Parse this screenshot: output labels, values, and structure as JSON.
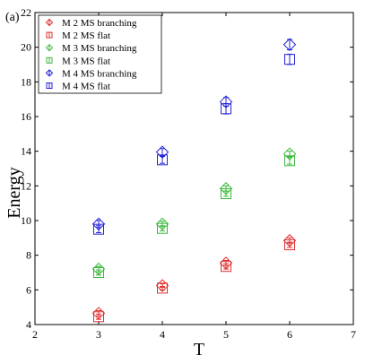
{
  "panel_label": "(a)",
  "chart_data": {
    "type": "scatter",
    "xlabel": "T",
    "ylabel": "Energy",
    "xlim": [
      2,
      7
    ],
    "ylim": [
      4,
      22
    ],
    "xticks": [
      2,
      3,
      4,
      5,
      6,
      7
    ],
    "yticks": [
      4,
      6,
      8,
      10,
      12,
      14,
      16,
      18,
      20,
      22
    ],
    "grid": false,
    "legend_position": "top-left",
    "series": [
      {
        "name": "M 2 MS branching",
        "color": "#e03030",
        "marker": "diamond",
        "x": [
          3,
          4,
          5,
          6
        ],
        "y": [
          4.65,
          6.25,
          7.55,
          8.85
        ],
        "err": [
          0.15,
          0.1,
          0.15,
          0.15
        ]
      },
      {
        "name": "M 2 MS flat",
        "color": "#e03030",
        "marker": "square",
        "x": [
          3,
          4,
          5,
          6
        ],
        "y": [
          4.45,
          6.1,
          7.35,
          8.6
        ],
        "err": [
          0.15,
          0.1,
          0.15,
          0.15
        ]
      },
      {
        "name": "M 3 MS branching",
        "color": "#3cb83c",
        "marker": "diamond",
        "x": [
          3,
          4,
          5,
          6
        ],
        "y": [
          7.2,
          9.8,
          11.85,
          13.85
        ],
        "err": [
          0.15,
          0.15,
          0.15,
          0.15
        ]
      },
      {
        "name": "M 3 MS flat",
        "color": "#3cb83c",
        "marker": "square",
        "x": [
          3,
          4,
          5,
          6
        ],
        "y": [
          7.0,
          9.55,
          11.55,
          13.45
        ],
        "err": [
          0.15,
          0.15,
          0.15,
          0.2
        ]
      },
      {
        "name": "M 4 MS branching",
        "color": "#2424d8",
        "marker": "diamond",
        "x": [
          3,
          4,
          5,
          6
        ],
        "y": [
          9.8,
          13.95,
          16.85,
          20.15
        ],
        "err": [
          0.2,
          0.2,
          0.25,
          0.3
        ]
      },
      {
        "name": "M 4 MS flat",
        "color": "#2424d8",
        "marker": "square",
        "x": [
          3,
          4,
          5,
          6
        ],
        "y": [
          9.5,
          13.5,
          16.45,
          19.3
        ],
        "err": [
          0.2,
          0.2,
          0.3,
          0.3
        ]
      }
    ]
  }
}
